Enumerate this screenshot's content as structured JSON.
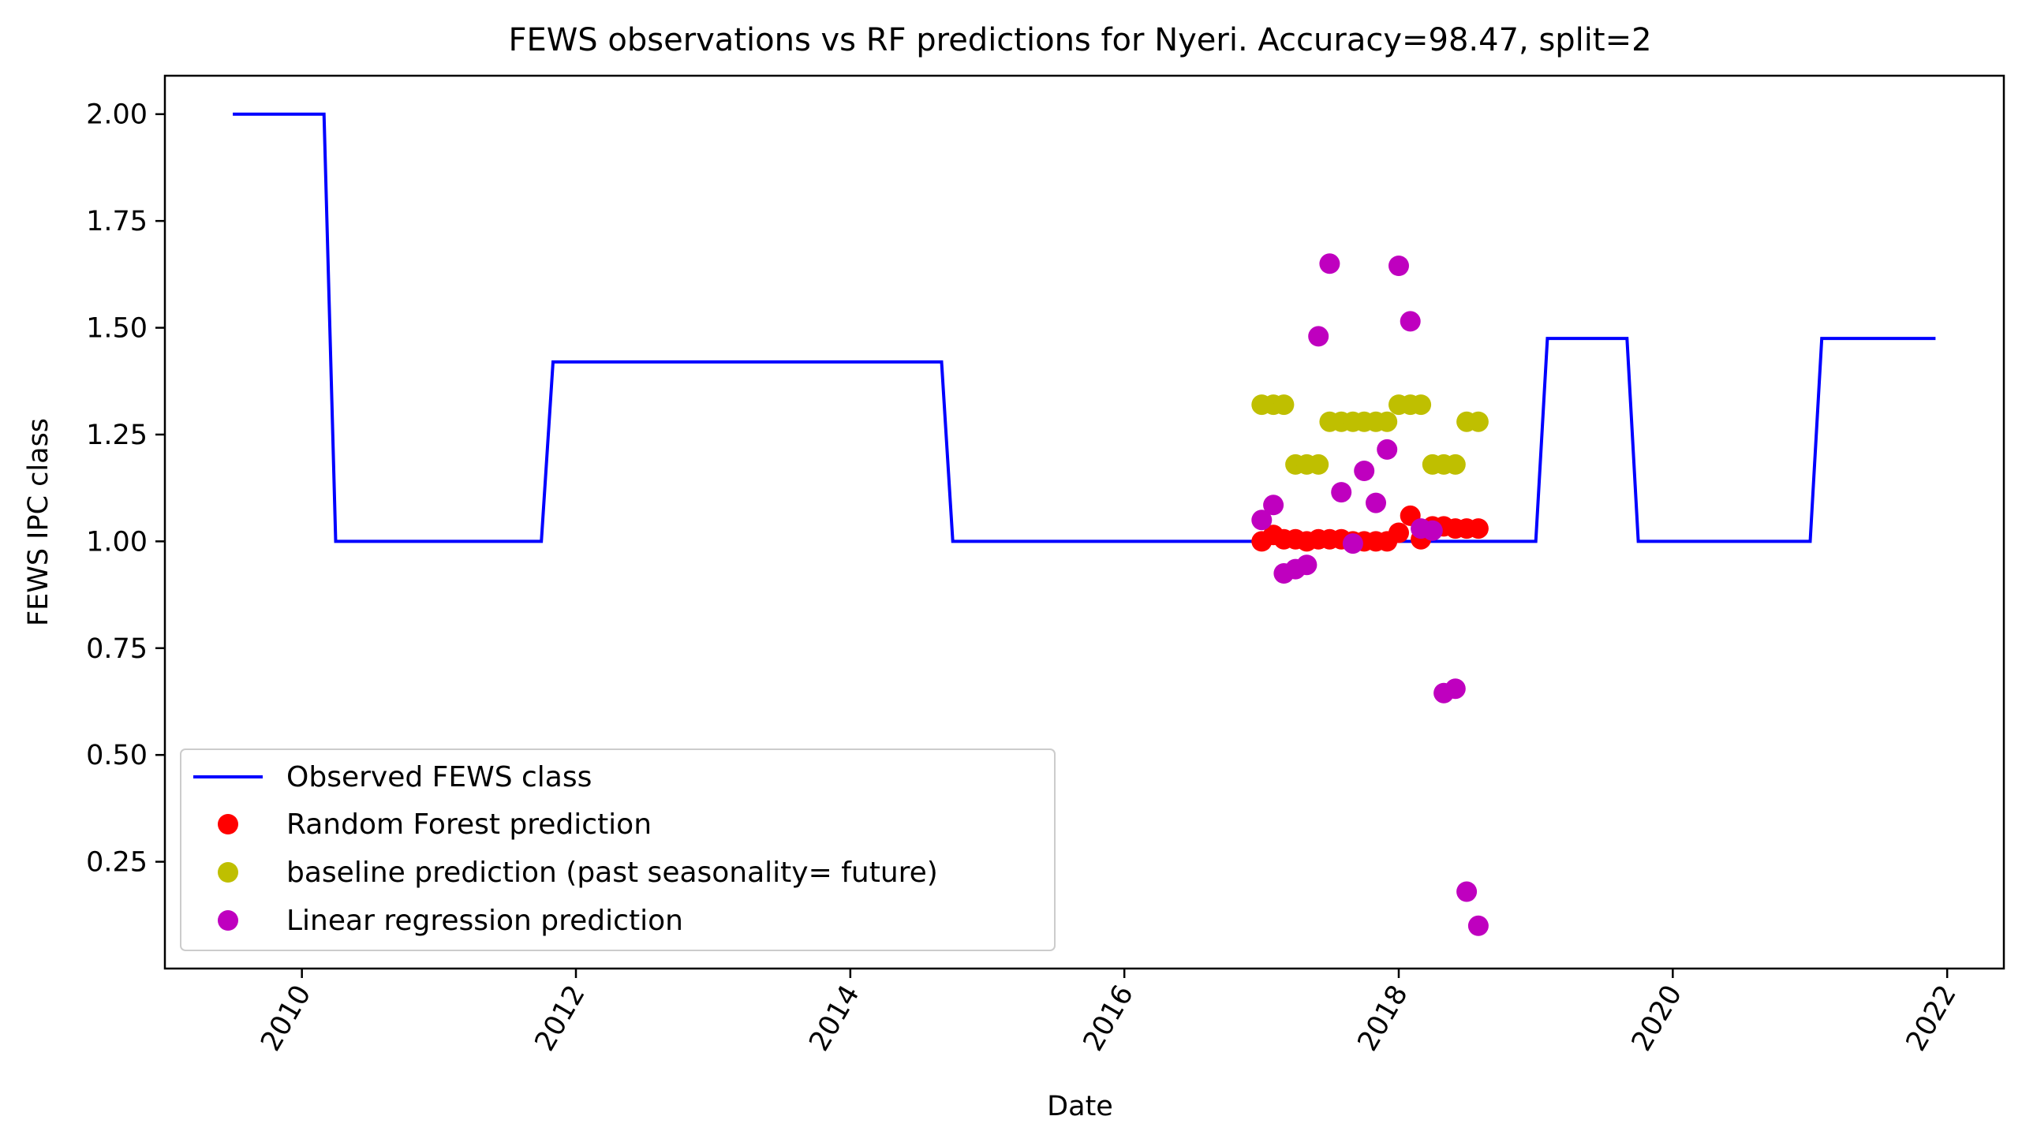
{
  "chart_data": {
    "type": "line",
    "title": "FEWS observations vs RF predictions for Nyeri. Accuracy=98.47, split=2",
    "xlabel": "Date",
    "ylabel": "FEWS IPC class",
    "x_axis_type": "date",
    "xlim": [
      "2009-01-01",
      "2022-06-01"
    ],
    "ylim": [
      0.0,
      2.09
    ],
    "x_ticks": [
      "2010",
      "2012",
      "2014",
      "2016",
      "2018",
      "2020",
      "2022"
    ],
    "y_ticks": [
      "0.25",
      "0.50",
      "0.75",
      "1.00",
      "1.25",
      "1.50",
      "1.75",
      "2.00"
    ],
    "x_tick_label_rotation_deg": 60,
    "grid": false,
    "legend_position": "lower-left",
    "series": [
      {
        "name": "Observed FEWS class",
        "kind": "line",
        "color": "#0000ff",
        "x": [
          "2009-07-01",
          "2010-03-01",
          "2010-04-01",
          "2011-10-01",
          "2011-11-01",
          "2014-09-01",
          "2014-10-01",
          "2019-01-01",
          "2019-02-01",
          "2019-09-01",
          "2019-10-01",
          "2021-01-01",
          "2021-02-01",
          "2021-12-01"
        ],
        "y": [
          2.0,
          2.0,
          1.0,
          1.0,
          1.42,
          1.42,
          1.0,
          1.0,
          1.475,
          1.475,
          1.0,
          1.0,
          1.475,
          1.475
        ]
      },
      {
        "name": "Random Forest prediction",
        "kind": "scatter",
        "color": "#ff0000",
        "x": [
          "2017-01-01",
          "2017-02-01",
          "2017-03-01",
          "2017-04-01",
          "2017-05-01",
          "2017-06-01",
          "2017-07-01",
          "2017-08-01",
          "2017-09-01",
          "2017-10-01",
          "2017-11-01",
          "2017-12-01",
          "2018-01-01",
          "2018-02-01",
          "2018-03-01",
          "2018-04-01",
          "2018-05-01",
          "2018-06-01",
          "2018-07-01",
          "2018-08-01"
        ],
        "y": [
          1.0,
          1.015,
          1.005,
          1.005,
          1.0,
          1.005,
          1.005,
          1.005,
          1.0,
          1.0,
          1.0,
          1.0,
          1.02,
          1.06,
          1.005,
          1.035,
          1.035,
          1.03,
          1.03,
          1.03
        ]
      },
      {
        "name": "baseline prediction (past seasonality= future)",
        "kind": "scatter",
        "color": "#bfbf00",
        "x": [
          "2017-01-01",
          "2017-02-01",
          "2017-03-01",
          "2017-04-01",
          "2017-05-01",
          "2017-06-01",
          "2017-07-01",
          "2017-08-01",
          "2017-09-01",
          "2017-10-01",
          "2017-11-01",
          "2017-12-01",
          "2018-01-01",
          "2018-02-01",
          "2018-03-01",
          "2018-04-01",
          "2018-05-01",
          "2018-06-01",
          "2018-07-01",
          "2018-08-01"
        ],
        "y": [
          1.32,
          1.32,
          1.32,
          1.18,
          1.18,
          1.18,
          1.28,
          1.28,
          1.28,
          1.28,
          1.28,
          1.28,
          1.32,
          1.32,
          1.32,
          1.18,
          1.18,
          1.18,
          1.28,
          1.28
        ]
      },
      {
        "name": "Linear regression prediction",
        "kind": "scatter",
        "color": "#bf00bf",
        "x": [
          "2017-01-01",
          "2017-02-01",
          "2017-03-01",
          "2017-04-01",
          "2017-05-01",
          "2017-06-01",
          "2017-07-01",
          "2017-08-01",
          "2017-09-01",
          "2017-10-01",
          "2017-11-01",
          "2017-12-01",
          "2018-01-01",
          "2018-02-01",
          "2018-03-01",
          "2018-04-01",
          "2018-05-01",
          "2018-06-01",
          "2018-07-01",
          "2018-08-01"
        ],
        "y": [
          1.05,
          1.085,
          0.925,
          0.935,
          0.945,
          1.48,
          1.65,
          1.115,
          0.995,
          1.165,
          1.09,
          1.215,
          1.645,
          1.515,
          1.03,
          1.025,
          0.645,
          0.655,
          0.18,
          0.1
        ]
      }
    ]
  }
}
